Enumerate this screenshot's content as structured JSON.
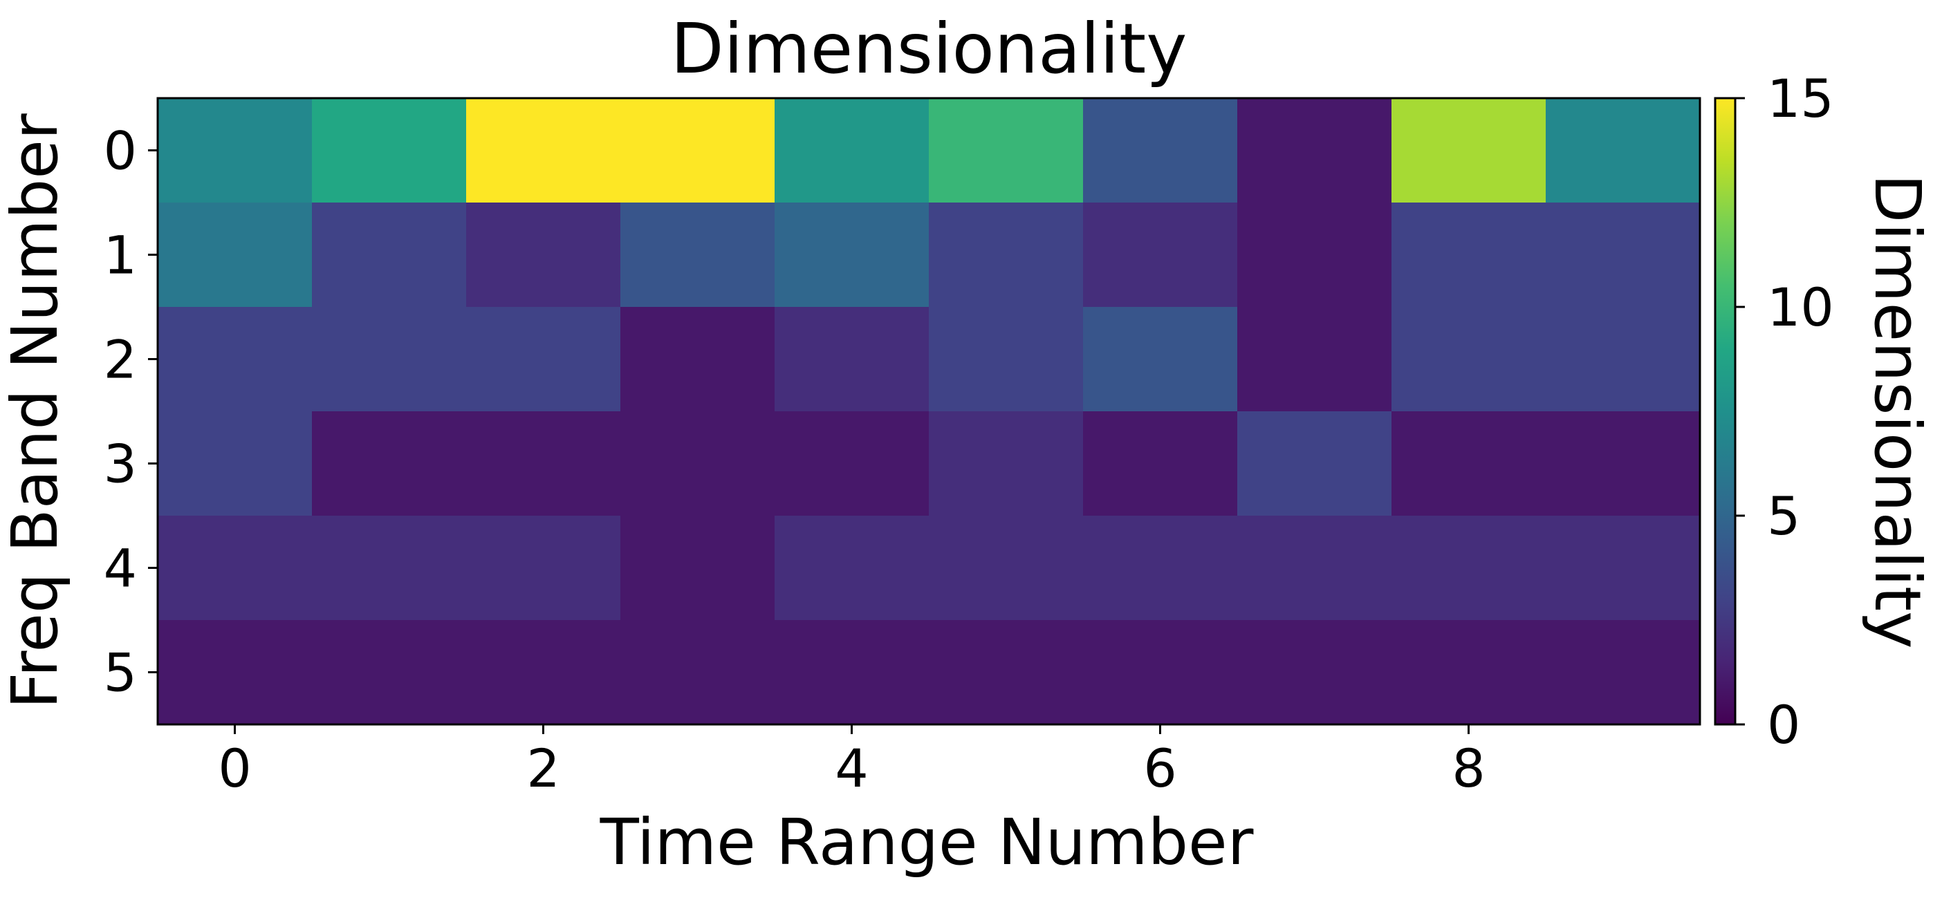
{
  "chart_data": {
    "type": "heatmap",
    "title": "Dimensionality",
    "xlabel": "Time Range Number",
    "ylabel": "Freq Band Number",
    "x_ticks": [
      0,
      2,
      4,
      6,
      8
    ],
    "y_ticks": [
      0,
      1,
      2,
      3,
      4,
      5
    ],
    "x_range": [
      -0.5,
      9.5
    ],
    "y_range": [
      -0.5,
      5.5
    ],
    "colormap": "viridis",
    "colorbar": {
      "label": "Dimensionality",
      "range": [
        0,
        15
      ],
      "ticks": [
        0,
        5,
        10,
        15
      ]
    },
    "grid": false,
    "values": [
      [
        7,
        9,
        15,
        15,
        8,
        10,
        4,
        1,
        13,
        7
      ],
      [
        6,
        3,
        2,
        4,
        5,
        3,
        2,
        1,
        3,
        3
      ],
      [
        3,
        3,
        3,
        1,
        2,
        3,
        4,
        1,
        3,
        3
      ],
      [
        3,
        1,
        1,
        1,
        1,
        2,
        1,
        3,
        1,
        1
      ],
      [
        2,
        2,
        2,
        1,
        2,
        2,
        2,
        2,
        2,
        2
      ],
      [
        1,
        1,
        1,
        1,
        1,
        1,
        1,
        1,
        1,
        1
      ]
    ]
  }
}
